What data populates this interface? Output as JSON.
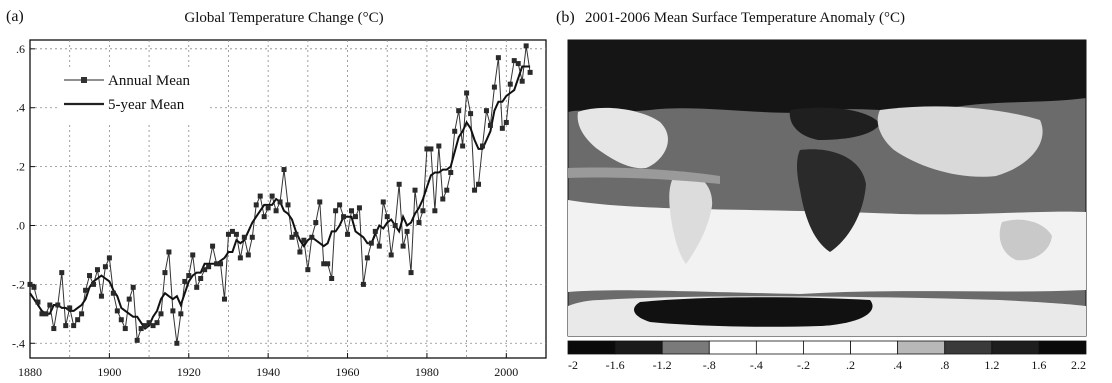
{
  "chart_data": [
    {
      "type": "line",
      "panel_label": "(a)",
      "title": "Global Temperature Change (°C)",
      "xlabel": "",
      "ylabel": "",
      "xlim": [
        1880,
        2010
      ],
      "ylim": [
        -0.45,
        0.63
      ],
      "x_ticks": [
        1880,
        1900,
        1920,
        1940,
        1960,
        1980,
        2000
      ],
      "y_ticks": [
        -0.4,
        -0.2,
        0.0,
        0.2,
        0.4,
        0.6
      ],
      "x_tick_labels": [
        "1880",
        "1900",
        "1920",
        "1940",
        "1960",
        "1980",
        "2000"
      ],
      "y_tick_labels": [
        "-.4",
        "-.2",
        ".0",
        ".2",
        ".4",
        ".6"
      ],
      "grid": true,
      "legend_position": "top-left",
      "legend_entries": [
        "Annual Mean",
        "5-year Mean"
      ],
      "x": [
        1880,
        1881,
        1882,
        1883,
        1884,
        1885,
        1886,
        1887,
        1888,
        1889,
        1890,
        1891,
        1892,
        1893,
        1894,
        1895,
        1896,
        1897,
        1898,
        1899,
        1900,
        1901,
        1902,
        1903,
        1904,
        1905,
        1906,
        1907,
        1908,
        1909,
        1910,
        1911,
        1912,
        1913,
        1914,
        1915,
        1916,
        1917,
        1918,
        1919,
        1920,
        1921,
        1922,
        1923,
        1924,
        1925,
        1926,
        1927,
        1928,
        1929,
        1930,
        1931,
        1932,
        1933,
        1934,
        1935,
        1936,
        1937,
        1938,
        1939,
        1940,
        1941,
        1942,
        1943,
        1944,
        1945,
        1946,
        1947,
        1948,
        1949,
        1950,
        1951,
        1952,
        1953,
        1954,
        1955,
        1956,
        1957,
        1958,
        1959,
        1960,
        1961,
        1962,
        1963,
        1964,
        1965,
        1966,
        1967,
        1968,
        1969,
        1970,
        1971,
        1972,
        1973,
        1974,
        1975,
        1976,
        1977,
        1978,
        1979,
        1980,
        1981,
        1982,
        1983,
        1984,
        1985,
        1986,
        1987,
        1988,
        1989,
        1990,
        1991,
        1992,
        1993,
        1994,
        1995,
        1996,
        1997,
        1998,
        1999,
        2000,
        2001,
        2002,
        2003,
        2004,
        2005,
        2006
      ],
      "series": [
        {
          "name": "Annual Mean",
          "values": [
            -0.2,
            -0.21,
            -0.26,
            -0.3,
            -0.3,
            -0.27,
            -0.35,
            -0.27,
            -0.16,
            -0.34,
            -0.28,
            -0.34,
            -0.32,
            -0.3,
            -0.22,
            -0.17,
            -0.2,
            -0.15,
            -0.24,
            -0.14,
            -0.11,
            -0.23,
            -0.29,
            -0.32,
            -0.35,
            -0.25,
            -0.21,
            -0.39,
            -0.35,
            -0.34,
            -0.33,
            -0.34,
            -0.33,
            -0.3,
            -0.16,
            -0.09,
            -0.29,
            -0.4,
            -0.3,
            -0.19,
            -0.17,
            -0.1,
            -0.21,
            -0.18,
            -0.15,
            -0.14,
            -0.07,
            -0.13,
            -0.13,
            -0.25,
            -0.03,
            -0.02,
            -0.03,
            -0.11,
            -0.04,
            -0.1,
            -0.04,
            0.07,
            0.1,
            0.03,
            0.06,
            0.1,
            0.05,
            0.08,
            0.19,
            0.07,
            -0.04,
            -0.03,
            -0.09,
            -0.05,
            -0.15,
            -0.04,
            0.01,
            0.08,
            -0.13,
            -0.13,
            -0.18,
            0.05,
            0.07,
            0.03,
            -0.03,
            0.05,
            0.03,
            0.06,
            -0.2,
            -0.11,
            -0.06,
            -0.02,
            -0.07,
            0.08,
            0.03,
            -0.1,
            0.0,
            0.14,
            -0.07,
            -0.02,
            -0.16,
            0.12,
            0.01,
            0.05,
            0.26,
            0.26,
            0.05,
            0.27,
            0.09,
            0.12,
            0.18,
            0.32,
            0.39,
            0.27,
            0.45,
            0.38,
            0.12,
            0.14,
            0.27,
            0.39,
            0.34,
            0.47,
            0.57,
            0.33,
            0.35,
            0.48,
            0.56,
            0.55,
            0.49,
            0.61,
            0.52
          ]
        },
        {
          "name": "5-year Mean",
          "values": [
            -0.23,
            -0.25,
            -0.27,
            -0.29,
            -0.3,
            -0.3,
            -0.27,
            -0.27,
            -0.28,
            -0.28,
            -0.29,
            -0.29,
            -0.28,
            -0.27,
            -0.25,
            -0.21,
            -0.19,
            -0.18,
            -0.17,
            -0.18,
            -0.19,
            -0.22,
            -0.24,
            -0.28,
            -0.29,
            -0.3,
            -0.31,
            -0.31,
            -0.33,
            -0.35,
            -0.34,
            -0.31,
            -0.29,
            -0.25,
            -0.23,
            -0.24,
            -0.25,
            -0.24,
            -0.27,
            -0.23,
            -0.19,
            -0.17,
            -0.16,
            -0.16,
            -0.13,
            -0.13,
            -0.13,
            -0.13,
            -0.12,
            -0.11,
            -0.09,
            -0.09,
            -0.05,
            -0.06,
            -0.05,
            -0.02,
            0.01,
            0.03,
            0.05,
            0.07,
            0.07,
            0.07,
            0.09,
            0.08,
            0.05,
            0.04,
            0.02,
            -0.02,
            -0.05,
            -0.07,
            -0.05,
            -0.04,
            -0.05,
            -0.06,
            -0.07,
            -0.06,
            -0.02,
            -0.02,
            0.0,
            0.03,
            0.03,
            0.03,
            -0.02,
            -0.03,
            -0.04,
            -0.06,
            -0.06,
            -0.03,
            0.0,
            -0.01,
            0.01,
            0.02,
            0.0,
            -0.02,
            0.03,
            0.0,
            0.01,
            0.04,
            0.06,
            0.09,
            0.13,
            0.17,
            0.18,
            0.18,
            0.19,
            0.19,
            0.2,
            0.25,
            0.3,
            0.32,
            0.35,
            0.33,
            0.29,
            0.26,
            0.26,
            0.29,
            0.32,
            0.39,
            0.42,
            0.42,
            0.44,
            0.45,
            0.46,
            0.5,
            0.54,
            0.54,
            0.54
          ]
        }
      ]
    },
    {
      "type": "heatmap",
      "panel_label": "(b)",
      "title": "2001-2006 Mean Surface Temperature Anomaly (°C)",
      "colorbar_labels": [
        "-2",
        "-1.6",
        "-1.2",
        "-.8",
        "-.4",
        "-.2",
        ".2",
        ".4",
        ".8",
        "1.2",
        "1.6",
        "2.2"
      ],
      "colorbar_colors": [
        "#0a0a0a",
        "#1a1a1a",
        "#7a7a7a",
        "#ffffff",
        "#ffffff",
        "#ffffff",
        "#ffffff",
        "#b8b8b8",
        "#3a3a3a",
        "#1e1e1e",
        "#0a0a0a"
      ]
    }
  ]
}
